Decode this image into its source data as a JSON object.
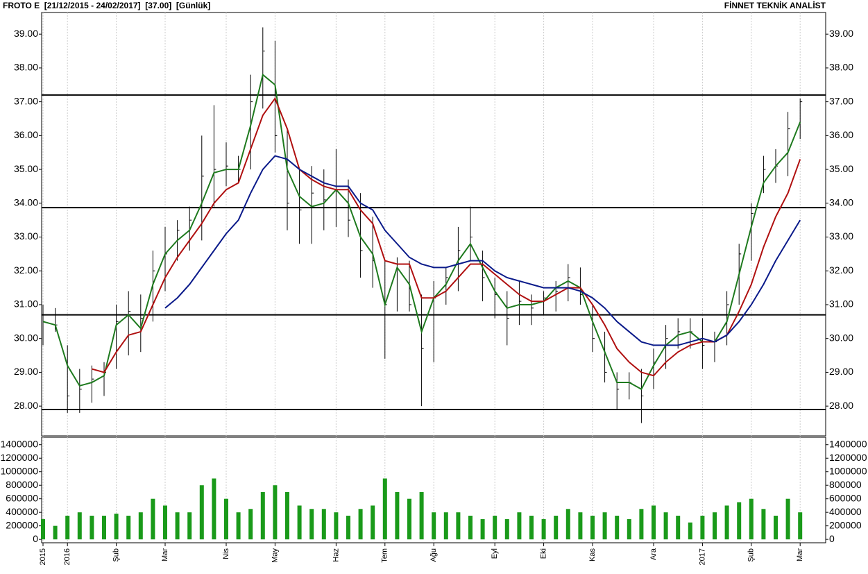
{
  "chart_data": [
    {
      "type": "hlc",
      "title": "FROTO E  [21/12/2015 - 24/02/2017]  [37.00]  [Günlük]",
      "source": "FİNNET TEKNİK ANALİST",
      "categories": [
        "2015",
        null,
        "2016",
        null,
        null,
        null,
        "Şub",
        null,
        null,
        null,
        "Mar",
        null,
        null,
        null,
        null,
        "Nis",
        null,
        null,
        null,
        "May",
        null,
        null,
        null,
        null,
        "Haz",
        null,
        null,
        null,
        "Tem",
        null,
        null,
        null,
        "Ağu",
        null,
        null,
        null,
        null,
        "Eyl",
        null,
        null,
        null,
        "Eki",
        null,
        null,
        null,
        "Kas",
        null,
        null,
        null,
        null,
        "Ara",
        null,
        null,
        null,
        "2017",
        null,
        null,
        null,
        "Şub",
        null,
        null,
        null,
        "Mar"
      ],
      "high": [
        31.0,
        30.9,
        29.8,
        29.1,
        29.2,
        29.3,
        31.0,
        31.4,
        31.3,
        32.6,
        33.3,
        33.5,
        33.9,
        36.0,
        36.9,
        35.8,
        35.4,
        37.8,
        39.2,
        38.8,
        36.2,
        35.0,
        35.1,
        35.0,
        35.6,
        34.7,
        34.3,
        33.6,
        32.3,
        32.4,
        32.3,
        31.3,
        31.7,
        32.1,
        33.3,
        33.9,
        32.6,
        31.8,
        31.4,
        31.7,
        31.3,
        31.4,
        31.7,
        32.2,
        32.1,
        31.0,
        30.2,
        29.0,
        29.0,
        29.1,
        29.7,
        30.4,
        30.6,
        30.6,
        30.6,
        30.2,
        31.4,
        32.8,
        34.0,
        35.4,
        35.6,
        36.7,
        37.1
      ],
      "low": [
        29.8,
        30.2,
        27.8,
        27.8,
        28.1,
        28.3,
        29.1,
        29.5,
        29.6,
        30.5,
        31.4,
        32.3,
        32.6,
        32.9,
        33.9,
        34.5,
        34.6,
        35.0,
        36.8,
        35.5,
        33.2,
        32.8,
        32.8,
        33.2,
        33.3,
        33.0,
        31.8,
        31.5,
        29.4,
        30.8,
        30.8,
        28.0,
        29.3,
        31.0,
        31.4,
        32.3,
        31.1,
        30.6,
        29.8,
        30.4,
        30.4,
        30.7,
        30.8,
        31.1,
        31.0,
        29.6,
        28.7,
        27.9,
        28.2,
        27.5,
        28.5,
        29.1,
        29.7,
        29.7,
        29.1,
        29.3,
        29.8,
        31.0,
        32.3,
        34.3,
        34.6,
        34.8,
        35.9
      ],
      "close": [
        30.5,
        30.4,
        28.3,
        28.5,
        28.8,
        29.0,
        30.5,
        30.8,
        30.6,
        32.0,
        32.5,
        33.2,
        33.5,
        34.8,
        35.0,
        35.1,
        35.0,
        37.0,
        38.5,
        36.0,
        34.0,
        33.8,
        34.3,
        34.1,
        34.5,
        33.5,
        32.6,
        32.3,
        31.0,
        32.2,
        31.0,
        29.7,
        31.2,
        31.8,
        32.6,
        33.0,
        31.8,
        31.3,
        30.6,
        31.1,
        30.9,
        31.2,
        31.4,
        31.8,
        31.3,
        30.0,
        29.0,
        28.5,
        28.7,
        28.3,
        29.3,
        30.0,
        30.2,
        30.2,
        29.8,
        29.9,
        31.0,
        32.5,
        33.7,
        35.0,
        35.1,
        36.2,
        37.0
      ],
      "color": "#000000",
      "series": [
        {
          "color": "#1e7a1e",
          "values": [
            30.5,
            30.4,
            29.2,
            28.6,
            28.7,
            28.9,
            30.4,
            30.7,
            30.3,
            31.6,
            32.5,
            32.9,
            33.2,
            34.0,
            34.9,
            35.0,
            35.0,
            36.3,
            37.8,
            37.5,
            35.0,
            34.2,
            33.9,
            34.0,
            34.4,
            34.0,
            33.0,
            32.5,
            31.0,
            32.1,
            31.6,
            30.2,
            31.2,
            31.6,
            32.3,
            32.8,
            32.1,
            31.4,
            30.9,
            31.0,
            31.0,
            31.1,
            31.5,
            31.7,
            31.5,
            30.5,
            29.6,
            28.7,
            28.7,
            28.5,
            29.2,
            29.8,
            30.1,
            30.2,
            29.9,
            29.9,
            30.5,
            31.9,
            33.3,
            34.6,
            35.1,
            35.5,
            36.4
          ]
        },
        {
          "color": "#b01010",
          "values": [
            null,
            null,
            null,
            null,
            29.1,
            29.0,
            29.6,
            30.1,
            30.2,
            31.0,
            31.8,
            32.4,
            32.9,
            33.4,
            34.0,
            34.4,
            34.6,
            35.6,
            36.6,
            37.1,
            36.2,
            35.0,
            34.7,
            34.5,
            34.4,
            34.4,
            33.8,
            33.4,
            32.3,
            32.2,
            32.2,
            31.2,
            31.2,
            31.4,
            31.8,
            32.2,
            32.2,
            31.9,
            31.6,
            31.3,
            31.1,
            31.1,
            31.3,
            31.5,
            31.5,
            31.0,
            30.4,
            29.7,
            29.3,
            29.0,
            28.9,
            29.3,
            29.6,
            29.8,
            29.9,
            29.9,
            30.1,
            30.8,
            31.6,
            32.7,
            33.6,
            34.3,
            35.3
          ]
        },
        {
          "color": "#0a1a8a",
          "values": [
            null,
            null,
            null,
            null,
            null,
            null,
            null,
            null,
            null,
            null,
            30.9,
            31.2,
            31.6,
            32.1,
            32.6,
            33.1,
            33.5,
            34.3,
            35.0,
            35.4,
            35.3,
            35.0,
            34.8,
            34.6,
            34.5,
            34.5,
            34.0,
            33.8,
            33.2,
            32.8,
            32.4,
            32.2,
            32.1,
            32.1,
            32.2,
            32.3,
            32.3,
            32.0,
            31.8,
            31.7,
            31.6,
            31.5,
            31.5,
            31.5,
            31.4,
            31.2,
            30.9,
            30.5,
            30.2,
            29.9,
            29.8,
            29.8,
            29.8,
            29.9,
            30.0,
            29.9,
            30.1,
            30.5,
            31.0,
            31.6,
            32.3,
            32.9,
            33.5
          ]
        }
      ],
      "levels": [
        37.2,
        33.87,
        30.7,
        27.9
      ],
      "ylim": [
        27.12,
        39.64
      ],
      "yticks": [
        {
          "value": 28,
          "label": "28.00"
        },
        {
          "value": 29,
          "label": "29.00"
        },
        {
          "value": 30,
          "label": "30.00"
        },
        {
          "value": 31,
          "label": "31.00"
        },
        {
          "value": 32,
          "label": "32.00"
        },
        {
          "value": 33,
          "label": "33.00"
        },
        {
          "value": 34,
          "label": "34.00"
        },
        {
          "value": 35,
          "label": "35.00"
        },
        {
          "value": 36,
          "label": "36.00"
        },
        {
          "value": 37,
          "label": "37.00"
        },
        {
          "value": 38,
          "label": "38.00"
        },
        {
          "value": 39,
          "label": "39.00"
        }
      ],
      "grid": true
    },
    {
      "type": "bar",
      "color": "#1a9a1a",
      "values": [
        300000,
        200000,
        350000,
        400000,
        350000,
        350000,
        380000,
        350000,
        400000,
        600000,
        500000,
        400000,
        400000,
        800000,
        900000,
        600000,
        400000,
        450000,
        700000,
        800000,
        700000,
        500000,
        450000,
        450000,
        400000,
        350000,
        450000,
        500000,
        900000,
        700000,
        600000,
        700000,
        400000,
        400000,
        400000,
        350000,
        300000,
        350000,
        300000,
        400000,
        350000,
        300000,
        350000,
        450000,
        400000,
        350000,
        400000,
        350000,
        300000,
        450000,
        500000,
        400000,
        350000,
        250000,
        350000,
        400000,
        500000,
        550000,
        600000,
        450000,
        350000,
        600000,
        400000
      ],
      "ylim": [
        -50000,
        1510000
      ],
      "yticks": [
        0,
        200000,
        400000,
        600000,
        800000,
        1000000,
        1200000,
        1400000
      ]
    }
  ]
}
